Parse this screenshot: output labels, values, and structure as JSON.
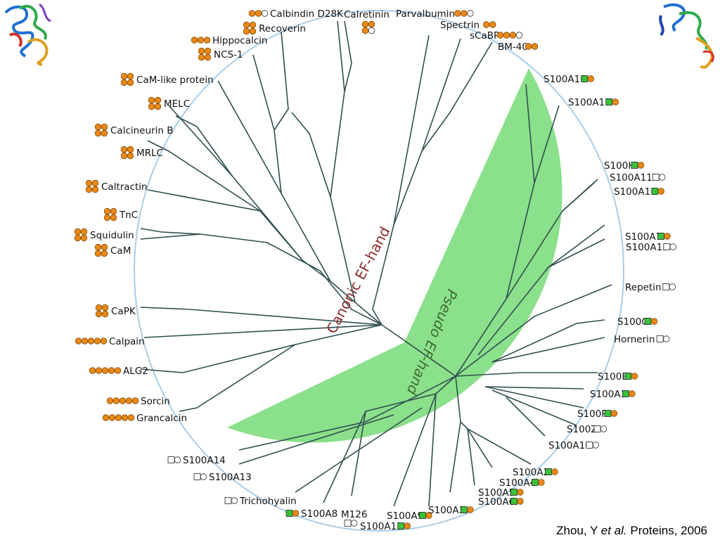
{
  "colors": {
    "circle": "#a9cde8",
    "wedge": "#8be08b",
    "branch": "#2f4f4f",
    "efhand": "#e8891a",
    "efhand_edge": "#8a4a00",
    "pseudo": "#39c239",
    "canon_text": "#8b2a2a",
    "pseudo_text": "#3c6b2a"
  },
  "groups": {
    "canonic": "Canonic EF-hand",
    "pseudo": "Pseudo EF-hand"
  },
  "citation": {
    "author": "Zhou, Y",
    "etal": "et al.",
    "journal": "Proteins, 2006"
  },
  "leaves": [
    {
      "name": "Calbindin D28K",
      "motif": [
        "o",
        "o",
        "w"
      ]
    },
    {
      "name": "Calretinin",
      "motif": [
        "o",
        "o",
        "o",
        "w"
      ]
    },
    {
      "name": "Parvalbumin",
      "motif": [
        "o",
        "o",
        "w"
      ]
    },
    {
      "name": "Recoverin",
      "motif": [
        "o",
        "o",
        "o",
        "o"
      ]
    },
    {
      "name": "Spectrin",
      "motif": [
        "o",
        "o"
      ]
    },
    {
      "name": "sCaBP",
      "motif": [
        "o",
        "o",
        "o",
        "w"
      ]
    },
    {
      "name": "BM-40",
      "motif": [
        "o",
        "o"
      ]
    },
    {
      "name": "Hippocalcin",
      "motif": [
        "o",
        "o",
        "o"
      ]
    },
    {
      "name": "NCS-1",
      "motif": [
        "o",
        "o",
        "o",
        "o"
      ]
    },
    {
      "name": "CaM-like protein",
      "motif": [
        "o",
        "o",
        "o",
        "o"
      ]
    },
    {
      "name": "MELC",
      "motif": [
        "o",
        "o",
        "o",
        "o"
      ]
    },
    {
      "name": "Calcineurin B",
      "motif": [
        "o",
        "o",
        "o",
        "o"
      ]
    },
    {
      "name": "MRLC",
      "motif": [
        "o",
        "o",
        "o",
        "o"
      ]
    },
    {
      "name": "Caltractin",
      "motif": [
        "o",
        "o",
        "o",
        "o"
      ]
    },
    {
      "name": "TnC",
      "motif": [
        "o",
        "o",
        "o",
        "o"
      ]
    },
    {
      "name": "Squidulin",
      "motif": [
        "o",
        "o",
        "o",
        "o"
      ]
    },
    {
      "name": "CaM",
      "motif": [
        "o",
        "o",
        "o",
        "o"
      ]
    },
    {
      "name": "CaPK",
      "motif": [
        "o",
        "o",
        "o",
        "o"
      ]
    },
    {
      "name": "Calpain",
      "motif": [
        "o",
        "o",
        "o",
        "o",
        "o"
      ]
    },
    {
      "name": "ALG2",
      "motif": [
        "o",
        "o",
        "o",
        "o",
        "o"
      ]
    },
    {
      "name": "Sorcin",
      "motif": [
        "o",
        "o",
        "o",
        "o",
        "o"
      ]
    },
    {
      "name": "Grancalcin",
      "motif": [
        "o",
        "o",
        "o",
        "o",
        "o"
      ]
    },
    {
      "name": "S100A14",
      "motif": [
        "s",
        "w"
      ]
    },
    {
      "name": "S100A13",
      "motif": [
        "s",
        "w"
      ]
    },
    {
      "name": "Trichohyalin",
      "motif": [
        "s",
        "w"
      ]
    },
    {
      "name": "S100A8",
      "motif": [
        "g",
        "o"
      ]
    },
    {
      "name": "M126",
      "motif": [
        "s",
        "w"
      ]
    },
    {
      "name": "S100A12",
      "motif": [
        "g",
        "o"
      ]
    },
    {
      "name": "S100A9",
      "motif": [
        "g",
        "o"
      ]
    },
    {
      "name": "S100A3",
      "motif": [
        "g",
        "o"
      ]
    },
    {
      "name": "S100A6",
      "motif": [
        "g",
        "o"
      ]
    },
    {
      "name": "S100A5",
      "motif": [
        "g",
        "o"
      ]
    },
    {
      "name": "S100A4",
      "motif": [
        "g",
        "o"
      ]
    },
    {
      "name": "S100A2",
      "motif": [
        "g",
        "o"
      ]
    },
    {
      "name": "S100A10",
      "motif": [
        "s",
        "w"
      ]
    },
    {
      "name": "S100Z",
      "motif": [
        "s",
        "w"
      ]
    },
    {
      "name": "S100P",
      "motif": [
        "g",
        "o"
      ]
    },
    {
      "name": "S100A1",
      "motif": [
        "g",
        "o"
      ]
    },
    {
      "name": "S100B",
      "motif": [
        "g",
        "o"
      ]
    },
    {
      "name": "Hornerin",
      "motif": [
        "s",
        "w"
      ]
    },
    {
      "name": "S100G",
      "motif": [
        "g",
        "o"
      ]
    },
    {
      "name": "Repetin",
      "motif": [
        "s",
        "w"
      ]
    },
    {
      "name": "S100A15",
      "motif": [
        "s",
        "w"
      ]
    },
    {
      "name": "S100A7",
      "motif": [
        "g",
        "o"
      ]
    },
    {
      "name": "S100A11",
      "motif": [
        "g",
        "o"
      ]
    },
    {
      "name": "S100A11P",
      "motif": [
        "s",
        "w"
      ]
    },
    {
      "name": "S100H",
      "motif": [
        "g",
        "o"
      ]
    },
    {
      "name": "S100A17",
      "motif": [
        "g",
        "o"
      ]
    },
    {
      "name": "S100A16",
      "motif": [
        "g",
        "o"
      ]
    }
  ]
}
